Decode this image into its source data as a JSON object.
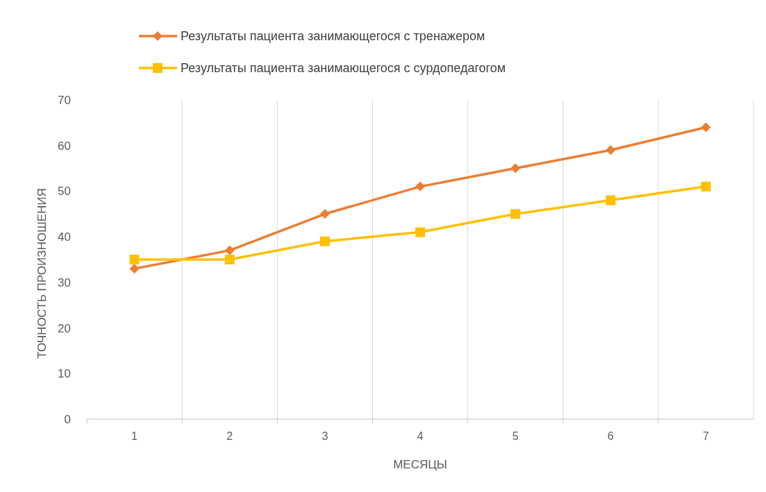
{
  "chart_data": {
    "type": "line",
    "xlabel": "МЕСЯЦЫ",
    "ylabel": "ТОЧНОСТЬ ПРОИЗНОШЕНИЯ",
    "categories": [
      "1",
      "2",
      "3",
      "4",
      "5",
      "6",
      "7"
    ],
    "series": [
      {
        "name": "Результаты пациента занимающегося с тренажером",
        "color": "#ed7d31",
        "marker": "diamond",
        "values": [
          33,
          37,
          45,
          51,
          55,
          59,
          64
        ]
      },
      {
        "name": "Результаты пациента занимающегося с сурдопедагогом",
        "color": "#ffc000",
        "marker": "square",
        "values": [
          35,
          35,
          39,
          41,
          45,
          48,
          51
        ]
      }
    ],
    "ylim": [
      0,
      70
    ],
    "yticks": [
      0,
      10,
      20,
      30,
      40,
      50,
      60,
      70
    ],
    "grid": "x",
    "legend": "top",
    "line_style": "solid"
  }
}
